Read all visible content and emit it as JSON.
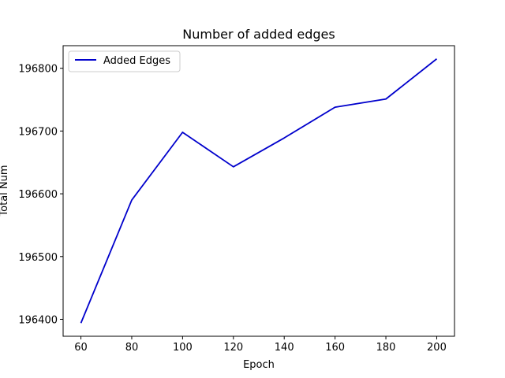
{
  "chart_data": {
    "type": "line",
    "title": "Number of added edges",
    "xlabel": "Epoch",
    "ylabel": "Total Num",
    "x": [
      60,
      80,
      100,
      120,
      140,
      160,
      180,
      200
    ],
    "series": [
      {
        "name": "Added Edges",
        "color": "#0000cc",
        "values": [
          196394,
          196590,
          196698,
          196643,
          196689,
          196738,
          196751,
          196815
        ]
      }
    ],
    "xlim": [
      53,
      207
    ],
    "ylim": [
      196373,
      196836
    ],
    "xticks": [
      60,
      80,
      100,
      120,
      140,
      160,
      180,
      200
    ],
    "yticks": [
      196400,
      196500,
      196600,
      196700,
      196800
    ],
    "grid": false,
    "legend_position": "top-left"
  }
}
